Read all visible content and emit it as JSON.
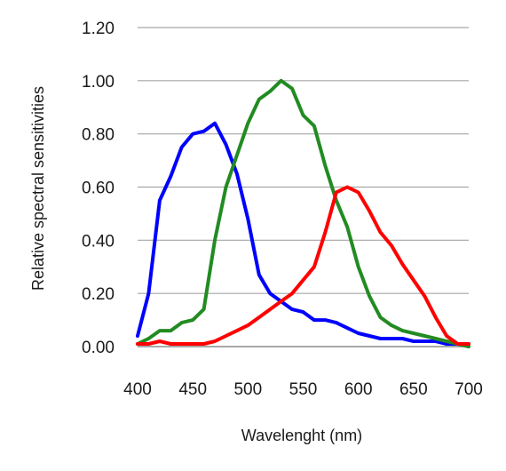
{
  "chart_data": {
    "type": "line",
    "title": "",
    "xlabel": "Wavelenght (nm)",
    "ylabel": "Relative spectral sensitivities",
    "xlim": [
      400,
      700
    ],
    "ylim": [
      0,
      1.2
    ],
    "x_ticks": [
      "400",
      "450",
      "500",
      "550",
      "600",
      "650",
      "700"
    ],
    "y_ticks": [
      "0.00",
      "0.20",
      "0.40",
      "0.60",
      "0.80",
      "1.00",
      "1.20"
    ],
    "grid": true,
    "legend": "none",
    "x": [
      400,
      410,
      420,
      430,
      440,
      450,
      460,
      470,
      480,
      490,
      500,
      510,
      520,
      530,
      540,
      550,
      560,
      570,
      580,
      590,
      600,
      610,
      620,
      630,
      640,
      650,
      660,
      670,
      680,
      690,
      700
    ],
    "series": [
      {
        "color": "#0000ff",
        "values": [
          0.04,
          0.2,
          0.55,
          0.64,
          0.75,
          0.8,
          0.81,
          0.84,
          0.76,
          0.65,
          0.48,
          0.27,
          0.2,
          0.17,
          0.14,
          0.13,
          0.1,
          0.1,
          0.09,
          0.07,
          0.05,
          0.04,
          0.03,
          0.03,
          0.03,
          0.02,
          0.02,
          0.02,
          0.01,
          0.01,
          0.01
        ]
      },
      {
        "color": "#228b22",
        "values": [
          0.01,
          0.03,
          0.06,
          0.06,
          0.09,
          0.1,
          0.14,
          0.4,
          0.6,
          0.72,
          0.84,
          0.93,
          0.96,
          1.0,
          0.97,
          0.87,
          0.83,
          0.68,
          0.55,
          0.45,
          0.3,
          0.19,
          0.11,
          0.08,
          0.06,
          0.05,
          0.04,
          0.03,
          0.02,
          0.01,
          0.0
        ]
      },
      {
        "color": "#ff0000",
        "values": [
          0.01,
          0.01,
          0.02,
          0.01,
          0.01,
          0.01,
          0.01,
          0.02,
          0.04,
          0.06,
          0.08,
          0.11,
          0.14,
          0.17,
          0.2,
          0.25,
          0.3,
          0.43,
          0.58,
          0.6,
          0.58,
          0.51,
          0.43,
          0.38,
          0.31,
          0.25,
          0.19,
          0.11,
          0.04,
          0.01,
          0.01
        ]
      }
    ]
  }
}
